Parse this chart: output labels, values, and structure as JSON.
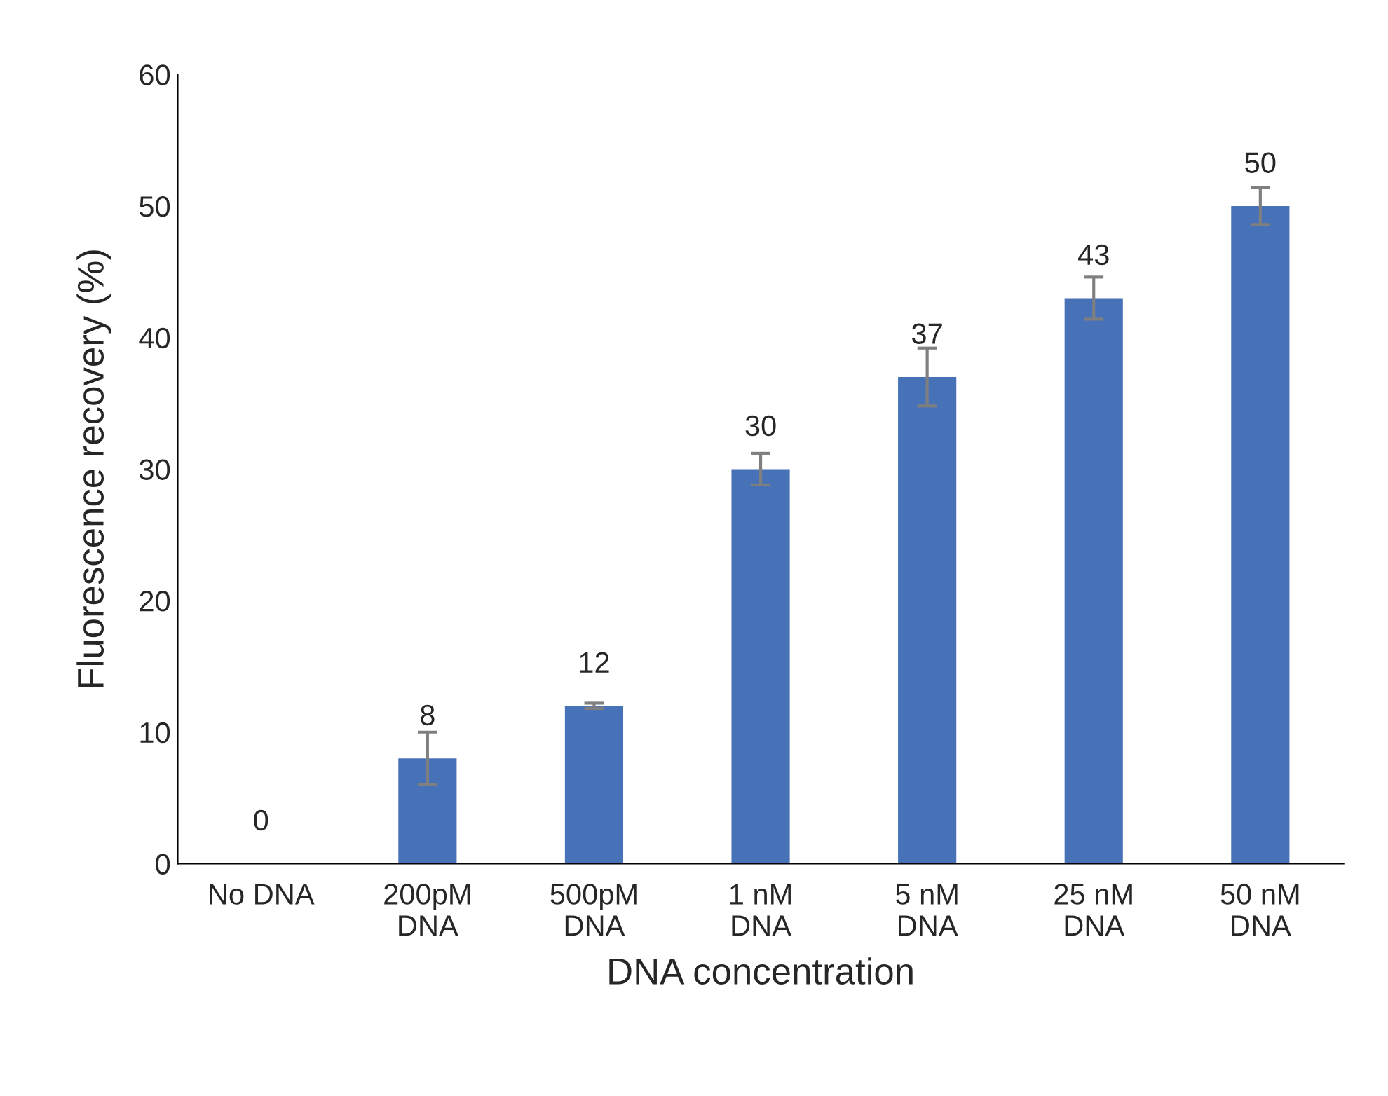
{
  "chart_data": {
    "type": "bar",
    "xlabel": "DNA concentration",
    "ylabel": "Fluorescence recovery (%)",
    "categories": [
      "No DNA",
      "200pM\nDNA",
      "500pM\nDNA",
      "1 nM\nDNA",
      "5 nM\nDNA",
      "25 nM\nDNA",
      "50 nM\nDNA"
    ],
    "values": [
      0,
      8,
      12,
      30,
      37,
      43,
      50
    ],
    "errors": [
      null,
      2,
      0.2,
      1.2,
      2.2,
      1.6,
      1.4
    ],
    "color": "#4872b8",
    "ylim": [
      0,
      60
    ],
    "yticks": [
      0,
      10,
      20,
      30,
      40,
      50,
      60
    ],
    "data_labels": true,
    "grid": false,
    "legend": false
  }
}
